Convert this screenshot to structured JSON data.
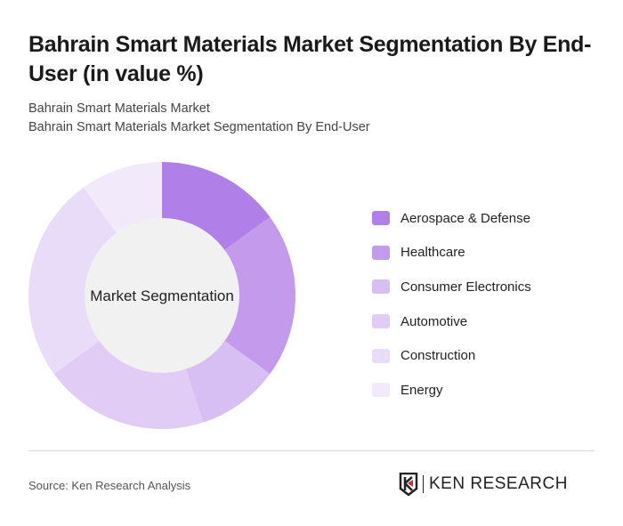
{
  "header": {
    "title": "Bahrain Smart Materials Market Segmentation By End-User (in value %)",
    "subtitle1": "Bahrain Smart Materials Market",
    "subtitle2": "Bahrain Smart Materials Market Segmentation By End-User"
  },
  "chart_data": {
    "type": "pie",
    "donut": true,
    "center_label": "Market Segmentation",
    "categories": [
      "Aerospace & Defense",
      "Healthcare",
      "Consumer Electronics",
      "Automotive",
      "Construction",
      "Energy"
    ],
    "values": [
      15,
      20,
      10,
      20,
      25,
      10
    ],
    "colors": [
      "#b07fe8",
      "#c49aec",
      "#d8bff3",
      "#e0ccf5",
      "#e9dcf8",
      "#f2eafb"
    ],
    "legend_position": "right"
  },
  "footer": {
    "source": "Source: Ken Research Analysis",
    "logo_text": "KEN RESEARCH"
  }
}
